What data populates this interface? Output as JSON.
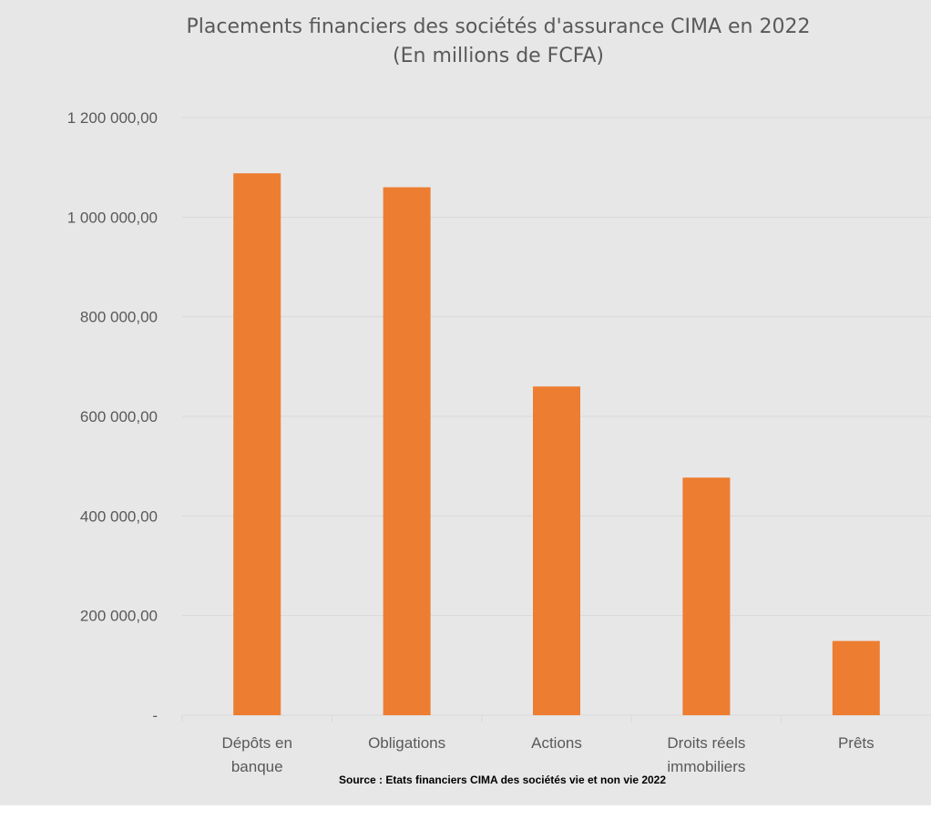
{
  "chart_data": {
    "type": "bar",
    "title": "Placements financiers des sociétés d'assurance CIMA en 2022",
    "subtitle": "(En millions de FCFA)",
    "categories": [
      [
        "Dépôts en",
        "banque"
      ],
      [
        "Obligations"
      ],
      [
        "Actions"
      ],
      [
        "Droits réels",
        "immobiliers"
      ],
      [
        "Prêts"
      ]
    ],
    "values": [
      1088000,
      1060000,
      660000,
      477000,
      149000
    ],
    "ylim": [
      0,
      1200000
    ],
    "yticks": [
      {
        "value": 0,
        "label": "-"
      },
      {
        "value": 200000,
        "label": "200 000,00"
      },
      {
        "value": 400000,
        "label": "400 000,00"
      },
      {
        "value": 600000,
        "label": "600 000,00"
      },
      {
        "value": 800000,
        "label": "800 000,00"
      },
      {
        "value": 1000000,
        "label": "1 000 000,00"
      },
      {
        "value": 1200000,
        "label": "1 200 000,00"
      }
    ],
    "grid": true,
    "bar_color": "#ed7d31",
    "grid_color": "#d9d9d9",
    "background_color": "#e7e7e7",
    "source": "Source : Etats financiers  CIMA des sociétés vie et non vie 2022"
  }
}
